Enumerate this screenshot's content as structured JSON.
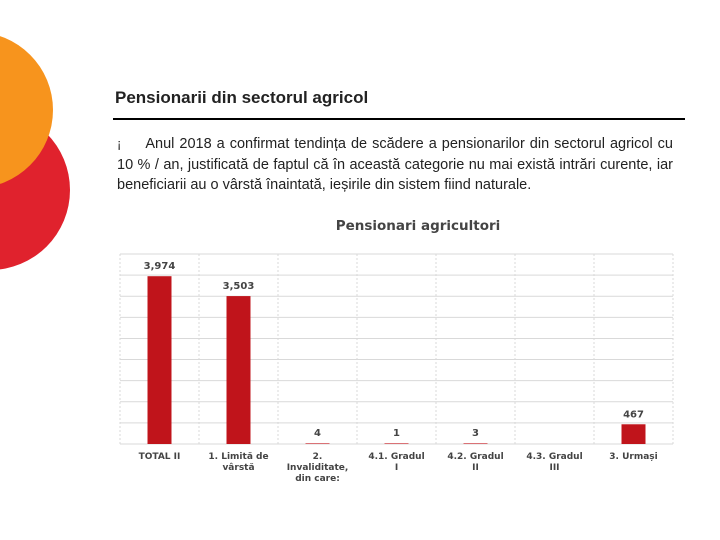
{
  "slide": {
    "title": "Pensionarii din sectorul agricol",
    "bullet_symbol": "¡",
    "bullet_text": "Anul 2018 a confirmat tendința de scădere a pensionarilor din sectorul agricol cu 10 % / an, justificată de faptul că în această categorie nu mai există intrări curente, iar beneficiarii au o vârstă înaintată, ieșirile din sistem fiind naturale."
  },
  "colors": {
    "bar": "#c0141b",
    "deco_orange": "#f7941d",
    "deco_red": "#e0222d",
    "grid": "#d9d9d9"
  },
  "chart_data": {
    "type": "bar",
    "title": "Pensionari agricultori",
    "categories": [
      "TOTAL II",
      "1. Limită de vârstă",
      "2. Invaliditate, din care:",
      "4.1. Gradul I",
      "4.2. Gradul II",
      "4.3. Gradul III",
      "3. Urmași"
    ],
    "category_lines": [
      [
        "TOTAL II"
      ],
      [
        "1. Limită de",
        "vârstă"
      ],
      [
        "2.",
        "Invaliditate,",
        "din care:"
      ],
      [
        "4.1. Gradul",
        "I"
      ],
      [
        "4.2. Gradul",
        "II"
      ],
      [
        "4.3. Gradul",
        "III"
      ],
      [
        "3. Urmași"
      ]
    ],
    "values": [
      3974,
      3503,
      4,
      1,
      3,
      null,
      467
    ],
    "data_labels": [
      "3,974",
      "3,503",
      "4",
      "1",
      "3",
      "",
      "467"
    ],
    "ylim": [
      0,
      4500
    ],
    "grid": true,
    "legend": "none",
    "xlabel": "",
    "ylabel": ""
  }
}
